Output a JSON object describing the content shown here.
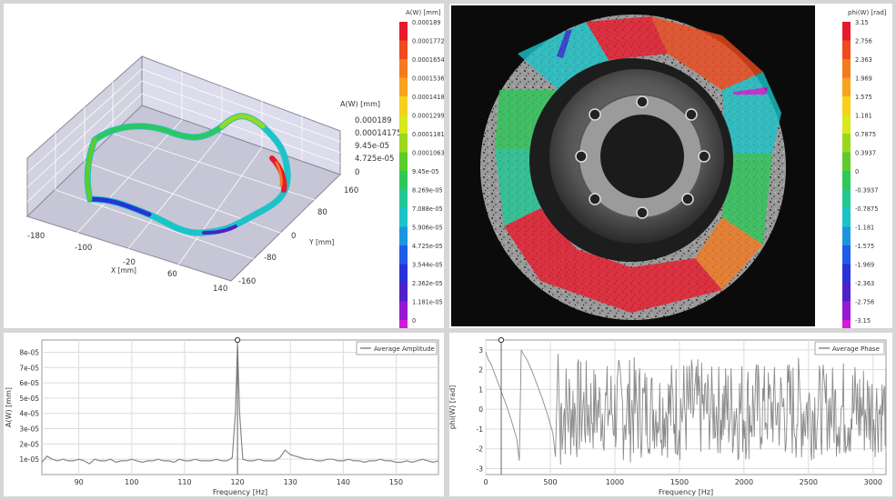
{
  "plot3d": {
    "z_title": "A(W) [mm]",
    "z_ticks": [
      "0.000189",
      "0.00014175",
      "9.45e-05",
      "4.725e-05",
      "0"
    ],
    "x_ticks": [
      "-180",
      "-100",
      "-20",
      "60",
      "140"
    ],
    "x_label": "X [mm]",
    "y_ticks": [
      "160",
      "80",
      "0",
      "-80",
      "-160"
    ],
    "y_label": "Y [mm]"
  },
  "amp_scale": {
    "title": "A(W) [mm]",
    "labels": [
      "0.000189",
      "0.0001772",
      "0.0001654",
      "0.0001536",
      "0.0001418",
      "0.0001299",
      "0.0001181",
      "0.0001063",
      "9.45e-05",
      "8.269e-05",
      "7.088e-05",
      "5.906e-05",
      "4.725e-05",
      "3.544e-05",
      "2.362e-05",
      "1.181e-05",
      "0"
    ],
    "colors": [
      "#e8192c",
      "#ee4a1c",
      "#f47a20",
      "#f8a21e",
      "#f6d01a",
      "#d8e818",
      "#9ad81c",
      "#5ccc2a",
      "#2ec85a",
      "#22c894",
      "#1cc4c8",
      "#1c94e0",
      "#1c5ce8",
      "#2832d8",
      "#5020c8",
      "#9618d4",
      "#d21ad8"
    ]
  },
  "phase_scale": {
    "title": "phi(W) [rad]",
    "labels": [
      "3.15",
      "2.756",
      "2.363",
      "1.969",
      "1.575",
      "1.181",
      "0.7875",
      "0.3937",
      "0",
      "-0.3937",
      "-0.7875",
      "-1.181",
      "-1.575",
      "-1.969",
      "-2.363",
      "-2.756",
      "-3.15"
    ],
    "colors": [
      "#e8192c",
      "#ee4a1c",
      "#f47a20",
      "#f8a21e",
      "#f6d01a",
      "#d8e818",
      "#9ad81c",
      "#5ccc2a",
      "#2ec85a",
      "#22c894",
      "#1cc4c8",
      "#1c94e0",
      "#1c5ce8",
      "#2832d8",
      "#5020c8",
      "#9618d4",
      "#d21ad8"
    ]
  },
  "chart_data": [
    {
      "type": "line",
      "title": "",
      "xlabel": "Frequency [Hz]",
      "ylabel": "A(W) [mm]",
      "xlim": [
        83,
        158
      ],
      "ylim": [
        0,
        8.8e-05
      ],
      "x_ticks": [
        90,
        100,
        110,
        120,
        130,
        140,
        150
      ],
      "y_tick_labels": [
        "1e-05",
        "2e-05",
        "3e-05",
        "4e-05",
        "5e-05",
        "6e-05",
        "7e-05",
        "8e-05"
      ],
      "y_tick_values": [
        1e-05,
        2e-05,
        3e-05,
        4e-05,
        5e-05,
        6e-05,
        7e-05,
        8e-05
      ],
      "legend": "top-right",
      "grid": true,
      "cursor_x": 120,
      "series": [
        {
          "name": "Average Amplitude",
          "x": [
            83,
            84,
            85,
            86,
            87,
            88,
            89,
            90,
            91,
            92,
            93,
            94,
            95,
            96,
            97,
            98,
            99,
            100,
            101,
            102,
            103,
            104,
            105,
            106,
            107,
            108,
            109,
            110,
            111,
            112,
            113,
            114,
            115,
            116,
            117,
            118,
            119,
            119.6,
            120,
            120.4,
            121,
            122,
            123,
            124,
            125,
            126,
            127,
            128,
            129,
            130,
            131,
            132,
            133,
            134,
            135,
            136,
            137,
            138,
            139,
            140,
            141,
            142,
            143,
            144,
            145,
            146,
            147,
            148,
            149,
            150,
            151,
            152,
            153,
            154,
            155,
            156,
            157,
            158
          ],
          "y": [
            8e-06,
            1.2e-05,
            1e-05,
            9e-06,
            1e-05,
            9e-06,
            9e-06,
            1e-05,
            9e-06,
            7e-06,
            1e-05,
            9e-06,
            9e-06,
            1e-05,
            8e-06,
            9e-06,
            9e-06,
            1e-05,
            9e-06,
            8e-06,
            9e-06,
            9e-06,
            1e-05,
            9e-06,
            9e-06,
            8e-06,
            1e-05,
            9e-06,
            9e-06,
            1e-05,
            9e-06,
            9e-06,
            9e-06,
            1e-05,
            9e-06,
            9e-06,
            1.1e-05,
            4e-05,
            8.4e-05,
            4e-05,
            1e-05,
            9e-06,
            9e-06,
            1e-05,
            9e-06,
            9e-06,
            9e-06,
            1.1e-05,
            1.6e-05,
            1.3e-05,
            1.2e-05,
            1.1e-05,
            1e-05,
            1e-05,
            9e-06,
            9e-06,
            1e-05,
            1e-05,
            9e-06,
            9e-06,
            1e-05,
            9e-06,
            9e-06,
            8e-06,
            9e-06,
            9e-06,
            1e-05,
            9e-06,
            9e-06,
            8e-06,
            8e-06,
            9e-06,
            8e-06,
            9e-06,
            1e-05,
            9e-06,
            8e-06,
            9e-06
          ]
        }
      ]
    },
    {
      "type": "line",
      "title": "",
      "xlabel": "Frequency [Hz]",
      "ylabel": "phi(W) [rad]",
      "xlim": [
        0,
        3100
      ],
      "ylim": [
        -3.3,
        3.5
      ],
      "x_ticks": [
        0,
        500,
        1000,
        1500,
        2000,
        2500,
        3000
      ],
      "y_tick_labels": [
        "-3",
        "-2",
        "-1",
        "0",
        "1",
        "2",
        "3"
      ],
      "y_tick_values": [
        -3,
        -2,
        -1,
        0,
        1,
        2,
        3
      ],
      "legend": "top-right",
      "grid": true,
      "cursor_x": 120,
      "series": [
        {
          "name": "Average Phase",
          "x": [
            0,
            20,
            40,
            80,
            120,
            160,
            200,
            240,
            260,
            275,
            290,
            320,
            360,
            400,
            440,
            480,
            520,
            540,
            560,
            580
          ],
          "y": [
            2.9,
            2.5,
            2.3,
            1.6,
            0.9,
            0.2,
            -0.6,
            -1.5,
            -2.6,
            3.0,
            2.8,
            2.5,
            1.9,
            1.2,
            0.5,
            -0.3,
            -1.2,
            -2.4,
            2.8,
            -2.8
          ],
          "note_noise_from_hz": 580
        }
      ]
    }
  ]
}
